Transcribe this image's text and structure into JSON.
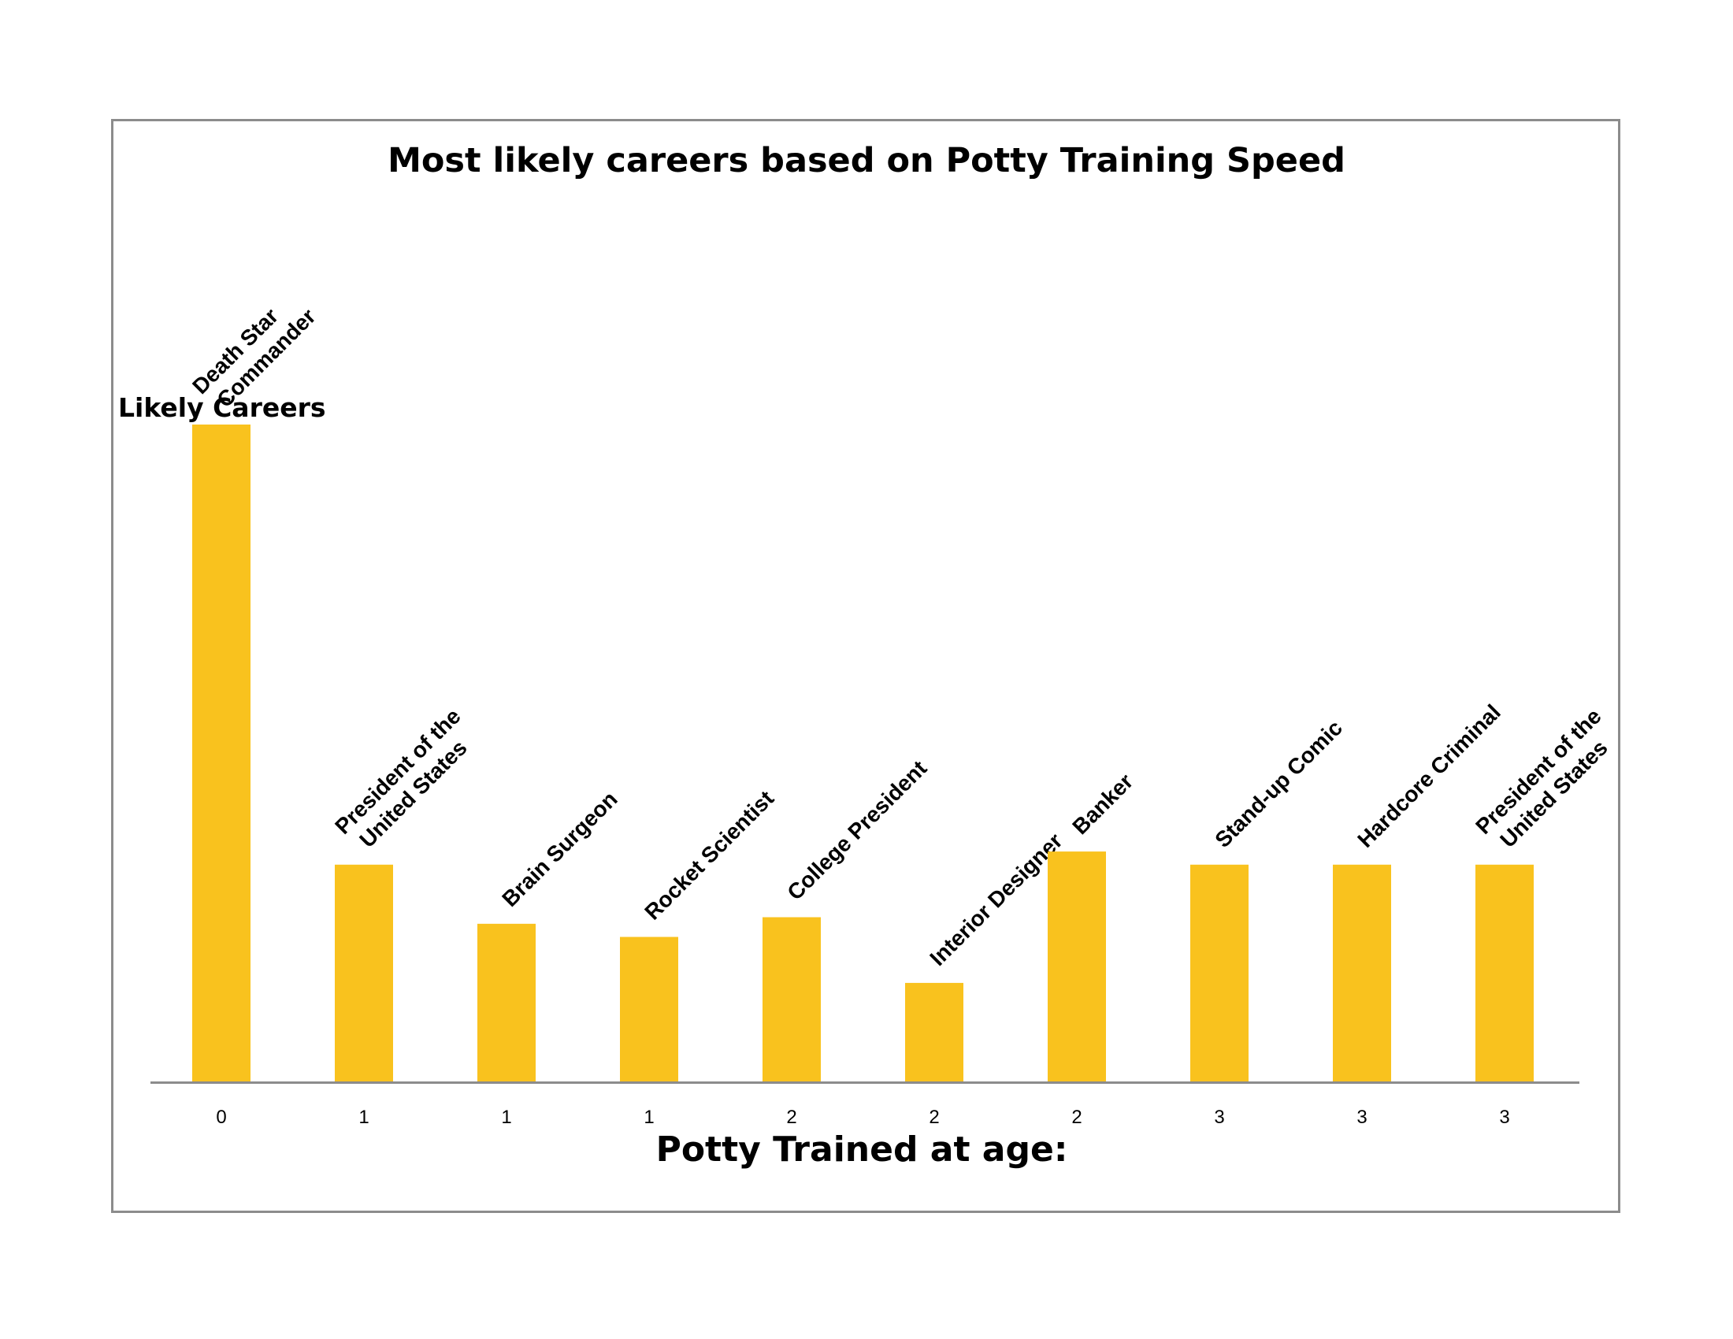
{
  "chart_data": {
    "type": "bar",
    "title": "Most likely careers based on Potty Training Speed",
    "xlabel": "Potty Trained at age:",
    "ylabel": "Likely Careers",
    "categories": [
      "0",
      "1",
      "1",
      "1",
      "2",
      "2",
      "2",
      "3",
      "3",
      "3"
    ],
    "bar_labels": [
      [
        "Death Star",
        "Commander"
      ],
      [
        "President of the",
        "United States"
      ],
      [
        "Brain Surgeon"
      ],
      [
        "Rocket Scientist"
      ],
      [
        "College President"
      ],
      [
        "Interior Designer"
      ],
      [
        "Banker"
      ],
      [
        "Stand-up Comic"
      ],
      [
        "Hardcore Criminal"
      ],
      [
        "President of the",
        "United States"
      ]
    ],
    "values": [
      5,
      1.65,
      1.2,
      1.1,
      1.25,
      0.75,
      1.75,
      1.65,
      1.65,
      1.65
    ],
    "ylim": [
      0,
      5
    ],
    "bar_color": "#F9C21E",
    "axis_color": "#8c8c8c",
    "grid": false,
    "legend": "none"
  }
}
